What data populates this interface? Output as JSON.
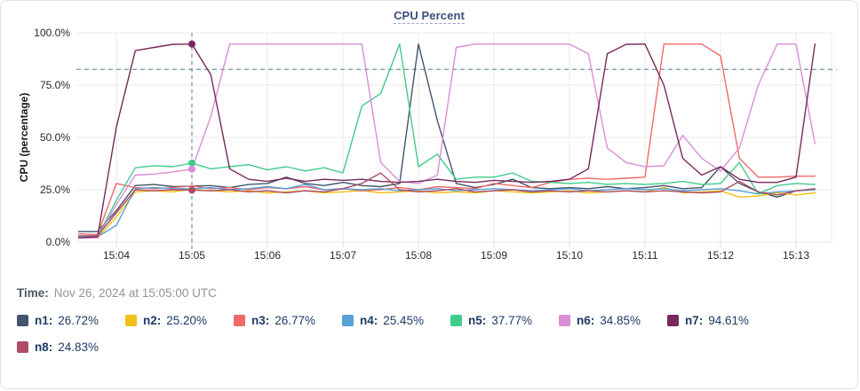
{
  "panel": {
    "title": "CPU Percent"
  },
  "time_row": {
    "label": "Time:",
    "value": "Nov 26, 2024 at 15:05:00 UTC"
  },
  "colors": {
    "grid": "#e8e9eb",
    "tick_mark": "#d9dbde",
    "threshold": "#4e7c8c",
    "crosshair": "#4e7c8c",
    "axis_text": "#24292e"
  },
  "chart_data": {
    "type": "line",
    "title": "CPU Percent",
    "ylabel": "CPU (percentage)",
    "y_ticks": [
      "0.0%",
      "25.0%",
      "50.0%",
      "75.0%",
      "100.0%"
    ],
    "y_tick_values": [
      0,
      25,
      50,
      75,
      100
    ],
    "ylim": [
      0,
      103.5
    ],
    "x_ticks": [
      "15:04",
      "15:05",
      "15:06",
      "15:07",
      "15:08",
      "15:09",
      "15:10",
      "15:11",
      "15:12",
      "15:13"
    ],
    "x_tick_values": [
      4,
      5,
      6,
      7,
      8,
      9,
      10,
      11,
      12,
      13
    ],
    "xlim": [
      3.47,
      13.55
    ],
    "grid": true,
    "legend_position": "bottom",
    "threshold": {
      "value": 82.5,
      "style": "dashed"
    },
    "crosshair": {
      "x": 5,
      "time_label": "15:05"
    },
    "x": [
      3.5,
      3.75,
      4,
      4.25,
      4.5,
      4.75,
      5,
      5.25,
      5.5,
      5.75,
      6,
      6.25,
      6.5,
      6.75,
      7,
      7.25,
      7.5,
      7.75,
      8,
      8.25,
      8.5,
      8.75,
      9,
      9.25,
      9.5,
      9.75,
      10,
      10.25,
      10.5,
      10.75,
      11,
      11.25,
      11.5,
      11.75,
      12,
      12.25,
      12.5,
      12.75,
      13,
      13.25
    ],
    "series": [
      {
        "name": "n1",
        "color": "#44546c",
        "legend_value": "26.72%",
        "values": [
          5,
          5,
          15,
          27,
          27.5,
          26.5,
          26.72,
          27,
          26,
          27.5,
          28,
          31,
          28,
          27,
          28.5,
          27,
          26.5,
          28,
          94.6,
          58,
          28,
          26,
          27.5,
          30,
          26,
          25.5,
          26,
          25.5,
          26.5,
          25.5,
          26,
          27,
          25.5,
          26,
          36,
          28,
          24,
          21.5,
          24.5,
          25
        ]
      },
      {
        "name": "n2",
        "color": "#f2c017",
        "legend_value": "25.20%",
        "values": [
          2,
          2,
          12,
          24,
          24.5,
          24,
          25.2,
          24.5,
          24,
          24.5,
          23.5,
          24,
          24.5,
          23.5,
          24,
          24.5,
          23.5,
          24,
          24.5,
          23.5,
          24,
          23.5,
          24.5,
          24,
          23.5,
          24,
          24.5,
          23.5,
          24,
          24.5,
          24,
          26,
          23.5,
          24,
          24.5,
          21.5,
          22,
          23.5,
          22.5,
          23.5
        ]
      },
      {
        "name": "n3",
        "color": "#ee6a6a",
        "legend_value": "26.77%",
        "values": [
          4,
          3.5,
          28,
          26,
          25.5,
          26,
          26.77,
          25.5,
          26,
          25,
          26,
          25.5,
          26.5,
          25,
          25.5,
          24.5,
          25,
          26,
          25,
          26.5,
          26,
          25.5,
          28,
          27,
          26,
          28.5,
          30,
          30.5,
          30,
          30.5,
          31,
          94.6,
          94.6,
          94.6,
          89,
          40,
          31,
          31,
          31.5,
          31.5
        ]
      },
      {
        "name": "n4",
        "color": "#57a0d6",
        "legend_value": "25.45%",
        "values": [
          2.5,
          2.5,
          8,
          25.5,
          26,
          25.5,
          25.45,
          26,
          25,
          25.5,
          26.5,
          25.5,
          27.5,
          25,
          25.5,
          25,
          25.5,
          24.5,
          25,
          25.5,
          24.5,
          25,
          25.5,
          25,
          24.5,
          25,
          25.5,
          24.5,
          25,
          25.5,
          25,
          25.5,
          24.5,
          25,
          25.5,
          24.5,
          23,
          24,
          24.5,
          25
        ]
      },
      {
        "name": "n5",
        "color": "#41cb8b",
        "legend_value": "37.77%",
        "values": [
          2,
          2.5,
          20,
          35.5,
          36.5,
          36,
          37.77,
          35,
          36,
          37,
          34.5,
          36,
          34,
          35.5,
          33,
          65,
          71,
          94.6,
          36,
          42,
          30,
          31,
          31,
          33,
          29,
          28.5,
          28,
          28.5,
          27.5,
          28,
          27.5,
          28,
          29,
          27.5,
          28,
          38,
          23,
          27,
          28,
          27.5
        ]
      },
      {
        "name": "n6",
        "color": "#da8ed6",
        "legend_value": "34.85%",
        "values": [
          2,
          2,
          18,
          32,
          32.5,
          33.5,
          34.85,
          60,
          94.6,
          94.6,
          94.6,
          94.6,
          94.6,
          94.6,
          94.6,
          94.6,
          38,
          29,
          28,
          32,
          93,
          94.6,
          94.6,
          94.6,
          94.6,
          94.6,
          94.6,
          90,
          45,
          38,
          36,
          36.5,
          51,
          40,
          34,
          45,
          75,
          94.6,
          94.6,
          47
        ]
      },
      {
        "name": "n7",
        "color": "#77295e",
        "legend_value": "94.61%",
        "values": [
          2,
          2.5,
          55,
          91.5,
          93,
          94.5,
          94.61,
          80,
          35,
          30,
          29,
          30.5,
          29,
          30,
          29.5,
          30,
          29,
          28.5,
          29,
          30,
          29,
          28.5,
          29.5,
          29,
          28.5,
          29,
          30,
          35,
          90,
          94.5,
          94.6,
          75,
          40,
          32,
          36,
          30,
          28.5,
          28.5,
          31,
          94.6
        ]
      },
      {
        "name": "n8",
        "color": "#ae4d64",
        "legend_value": "24.83%",
        "values": [
          3,
          3,
          14,
          25,
          24.5,
          25,
          24.83,
          24.5,
          25,
          24,
          24.5,
          23.5,
          24.5,
          24,
          25.5,
          28,
          33,
          25,
          24,
          24.5,
          25.5,
          24,
          24.5,
          25,
          24,
          24.5,
          24,
          24.5,
          24,
          24.5,
          24,
          24.5,
          24,
          23.5,
          24,
          29,
          24,
          22.5,
          24.5,
          25.5
        ]
      }
    ],
    "markers": [
      {
        "series": "n7",
        "value": 94.61
      },
      {
        "series": "n5",
        "value": 37.77
      },
      {
        "series": "n6",
        "value": 34.85
      },
      {
        "series": "n8",
        "value": 24.83
      }
    ]
  }
}
